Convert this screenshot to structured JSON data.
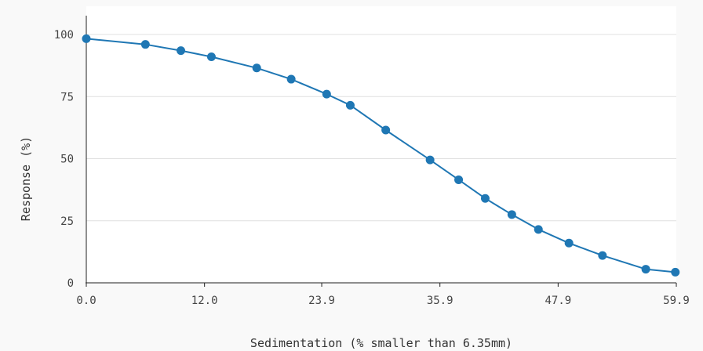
{
  "chart_data": {
    "type": "line",
    "title": "",
    "xlabel": "Sedimentation (% smaller than 6.35mm)",
    "ylabel": "Response (%)",
    "xlim": [
      0,
      59.9
    ],
    "ylim": [
      0,
      100
    ],
    "x_ticks": [
      0.0,
      12.0,
      23.9,
      35.9,
      47.9,
      59.9
    ],
    "x_tick_labels": [
      "0.0",
      "12.0",
      "23.9",
      "35.9",
      "47.9",
      "59.9"
    ],
    "y_ticks": [
      0,
      25,
      50,
      75,
      100
    ],
    "y_tick_labels": [
      "0",
      "25",
      "50",
      "75",
      "100"
    ],
    "grid": true,
    "series": [
      {
        "color": "#1f77b4",
        "x": [
          0.0,
          6.0,
          9.6,
          12.7,
          17.3,
          20.8,
          24.4,
          26.8,
          30.4,
          34.9,
          37.8,
          40.5,
          43.2,
          45.9,
          49.0,
          52.4,
          56.8,
          59.8
        ],
        "y": [
          98.3,
          96.0,
          93.5,
          91.0,
          86.5,
          82.0,
          76.0,
          71.5,
          61.5,
          49.5,
          41.5,
          34.0,
          27.5,
          21.5,
          16.0,
          11.0,
          5.5,
          4.3
        ]
      }
    ]
  },
  "colors": {
    "background": "#f9f9f9",
    "plot_background": "#ffffff",
    "gridline": "#e0e0e0",
    "axis": "#222222",
    "line": "#1f77b4",
    "marker": "#1f77b4"
  }
}
